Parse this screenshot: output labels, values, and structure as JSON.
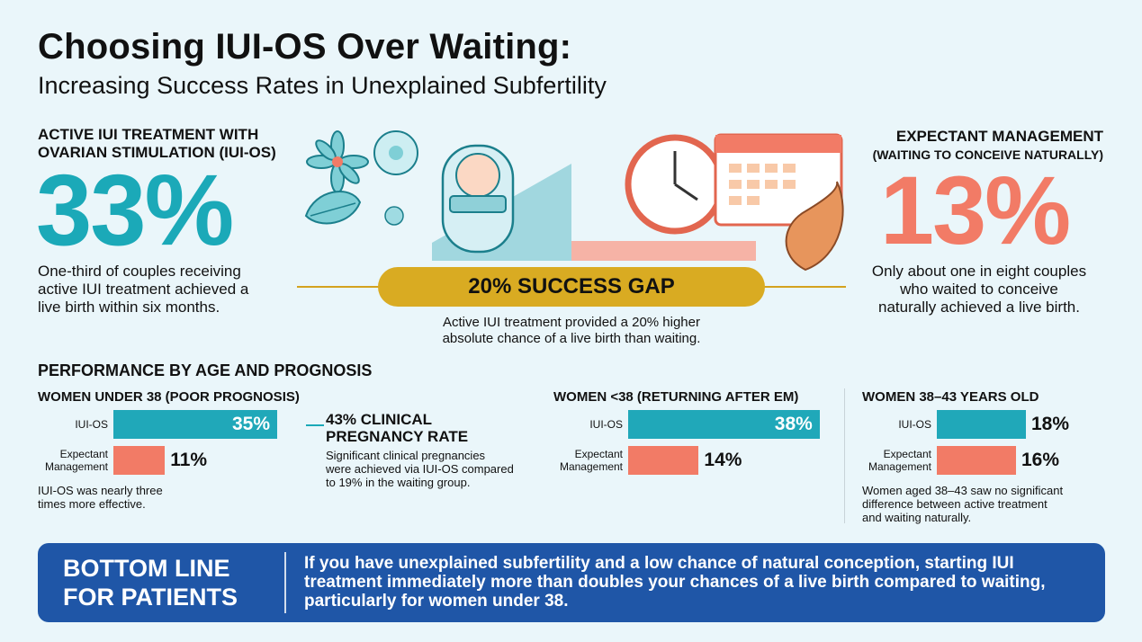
{
  "header": {
    "title": "Choosing IUI-OS Over Waiting:",
    "subtitle": "Increasing Success Rates in Unexplained Subfertility"
  },
  "left": {
    "heading_line1": "ACTIVE IUI TREATMENT WITH",
    "heading_line2": "OVARIAN STIMULATION (IUI-OS)",
    "percent": "33%",
    "desc_line1": "One-third of couples receiving",
    "desc_line2": "active IUI treatment achieved a",
    "desc_line3": "live birth within six months."
  },
  "right": {
    "heading_line1": "EXPECTANT MANAGEMENT",
    "heading_line2": "(WAITING TO CONCEIVE NATURALLY)",
    "percent": "13%",
    "desc_line1": "Only about one in eight couples",
    "desc_line2": "who waited to conceive",
    "desc_line3": "naturally achieved a live birth."
  },
  "gap": {
    "label": "20% SUCCESS GAP",
    "note_line1": "Active IUI treatment provided a 20% higher",
    "note_line2": "absolute chance of a live birth than waiting."
  },
  "performance": {
    "heading": "PERFORMANCE BY AGE AND PROGNOSIS",
    "callout": {
      "title_line1": "43% CLINICAL",
      "title_line2": "PREGNANCY RATE",
      "text_line1": "Significant clinical pregnancies",
      "text_line2": "were achieved via IUI-OS compared",
      "text_line3": "to 19% in the waiting group."
    },
    "panel1_note_line1": "IUI-OS was nearly three",
    "panel1_note_line2": "times more effective.",
    "panel3_note_line1": "Women aged 38–43 saw no significant",
    "panel3_note_line2": "difference between active treatment",
    "panel3_note_line3": "and waiting naturally."
  },
  "chart_data": [
    {
      "type": "bar",
      "title": "WOMEN UNDER 38 (POOR PROGNOSIS)",
      "categories": [
        "IUI-OS",
        "Expectant Management"
      ],
      "category_lines": [
        [
          "IUI-OS"
        ],
        [
          "Expectant",
          "Management"
        ]
      ],
      "values": [
        35,
        11
      ],
      "labels": [
        "35%",
        "11%"
      ],
      "colors": [
        "#20a8b9",
        "#f27b66"
      ]
    },
    {
      "type": "bar",
      "title": "WOMEN <38 (RETURNING AFTER EM)",
      "categories": [
        "IUI-OS",
        "Expectant Management"
      ],
      "category_lines": [
        [
          "IUI-OS"
        ],
        [
          "Expectant",
          "Management"
        ]
      ],
      "values": [
        38,
        14
      ],
      "labels": [
        "38%",
        "14%"
      ],
      "colors": [
        "#20a8b9",
        "#f27b66"
      ]
    },
    {
      "type": "bar",
      "title": "WOMEN 38–43 YEARS OLD",
      "categories": [
        "IUI-OS",
        "Expectant Management"
      ],
      "category_lines": [
        [
          "IUI-OS"
        ],
        [
          "Expectant",
          "Management"
        ]
      ],
      "values": [
        18,
        16
      ],
      "labels": [
        "18%",
        "16%"
      ],
      "colors": [
        "#20a8b9",
        "#f27b66"
      ]
    }
  ],
  "bottom": {
    "heading_line1": "BOTTOM LINE",
    "heading_line2": "FOR PATIENTS",
    "text": "If you have unexplained subfertility and a low chance of natural conception, starting IUI treatment immediately more than doubles your chances of a live birth compared to waiting, particularly for women under 38."
  },
  "illustration": {
    "icons": [
      "flower-icon",
      "cell-icon",
      "leaf-icon",
      "baby-icon",
      "clock-icon",
      "calendar-icon",
      "seed-icon"
    ],
    "colors": {
      "teal": "#1ba9b8",
      "salmon": "#f27b66",
      "gold": "#d9ab22",
      "navy": "#1f56a7"
    }
  }
}
